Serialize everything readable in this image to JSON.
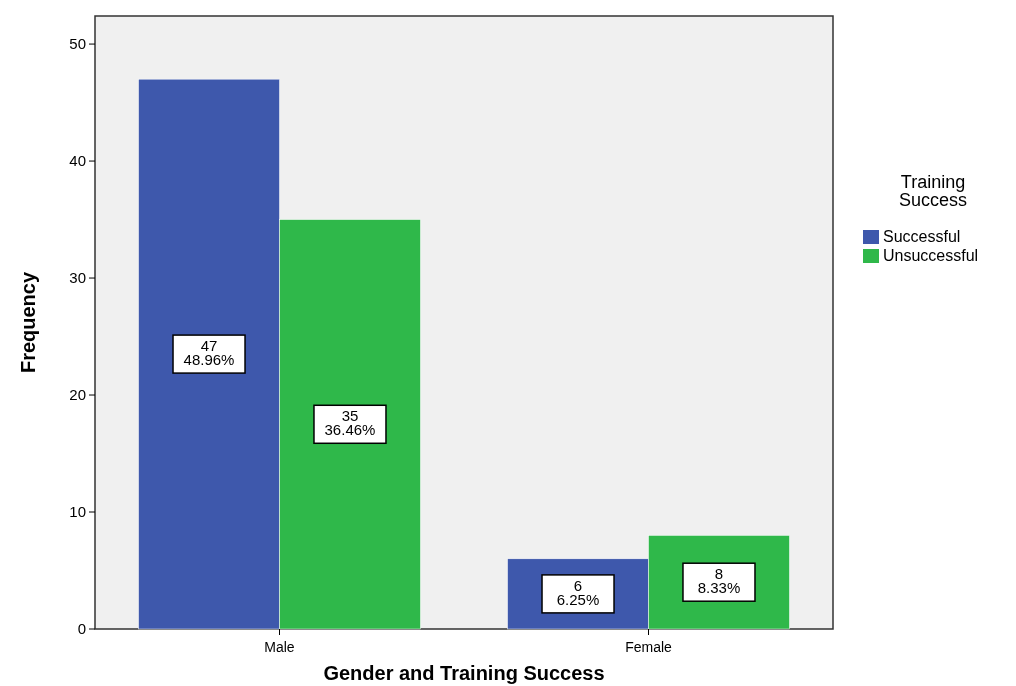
{
  "chart_data": {
    "type": "bar",
    "xlabel": "Gender and Training Success",
    "ylabel": "Frequency",
    "legend_title": "Training\nSuccess",
    "legend": "right",
    "categories": [
      "Male",
      "Female"
    ],
    "series": [
      {
        "name": "Successful",
        "color": "#3e58ac",
        "values": [
          47,
          6
        ],
        "value_labels": [
          "47\n48.96%",
          "6\n6.25%"
        ]
      },
      {
        "name": "Unsuccessful",
        "color": "#2fb84a",
        "values": [
          35,
          8
        ],
        "value_labels": [
          "35\n36.46%",
          "8\n8.33%"
        ]
      }
    ],
    "ylim": [
      0,
      52.4
    ],
    "yticks": [
      0,
      10,
      20,
      30,
      40,
      50
    ]
  }
}
